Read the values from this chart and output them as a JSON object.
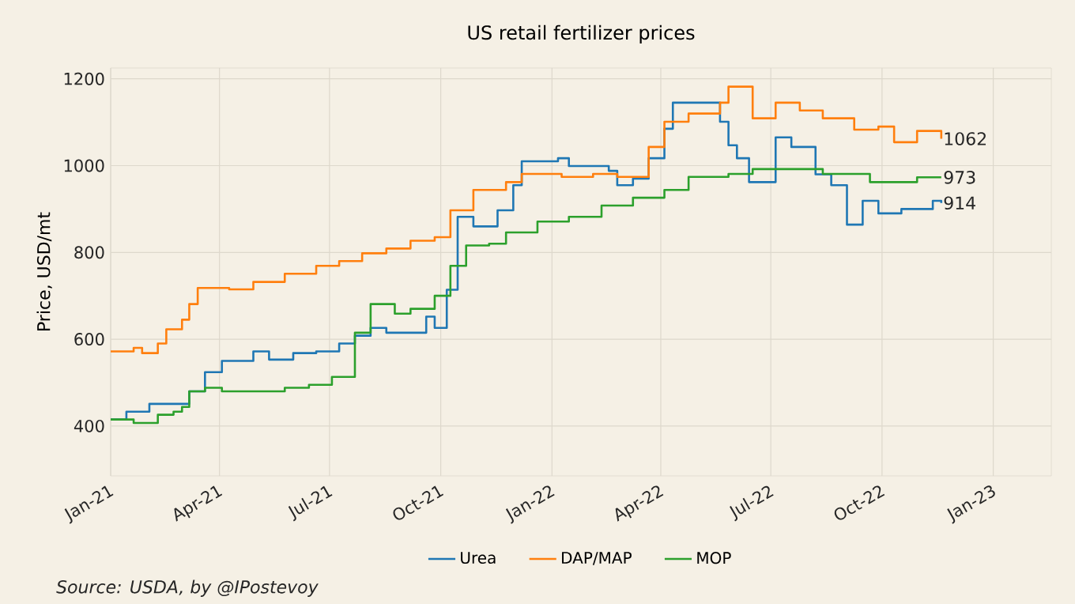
{
  "chart_data": {
    "type": "step",
    "title": "US retail fertilizer prices",
    "ylabel": "Price, USD/mt",
    "xlim": [
      "2021-01-01",
      "2023-02-18"
    ],
    "ylim": [
      285,
      1225
    ],
    "xticks": [
      {
        "value": "2021-01-01",
        "label": "Jan-21"
      },
      {
        "value": "2021-04-01",
        "label": "Apr-21"
      },
      {
        "value": "2021-07-01",
        "label": "Jul-21"
      },
      {
        "value": "2021-10-01",
        "label": "Oct-21"
      },
      {
        "value": "2022-01-01",
        "label": "Jan-22"
      },
      {
        "value": "2022-04-01",
        "label": "Apr-22"
      },
      {
        "value": "2022-07-01",
        "label": "Jul-22"
      },
      {
        "value": "2022-10-01",
        "label": "Oct-22"
      },
      {
        "value": "2023-01-01",
        "label": "Jan-23"
      }
    ],
    "yticks": [
      400,
      600,
      800,
      1000,
      1200
    ],
    "grid": true,
    "legend": "bottom",
    "series": [
      {
        "name": "Urea",
        "color": "#1f77b4",
        "x": [
          "2021-01-01",
          "2021-01-14",
          "2021-02-02",
          "2021-02-22",
          "2021-03-07",
          "2021-03-20",
          "2021-04-03",
          "2021-04-16",
          "2021-04-29",
          "2021-05-12",
          "2021-06-01",
          "2021-06-20",
          "2021-07-09",
          "2021-07-22",
          "2021-08-04",
          "2021-08-17",
          "2021-09-06",
          "2021-09-19",
          "2021-09-26",
          "2021-10-06",
          "2021-10-15",
          "2021-10-28",
          "2021-11-17",
          "2021-11-30",
          "2021-12-07",
          "2021-12-27",
          "2022-01-06",
          "2022-01-15",
          "2022-02-17",
          "2022-02-24",
          "2022-03-09",
          "2022-03-22",
          "2022-04-04",
          "2022-04-11",
          "2022-05-20",
          "2022-05-27",
          "2022-06-03",
          "2022-06-13",
          "2022-06-16",
          "2022-07-05",
          "2022-07-18",
          "2022-08-07",
          "2022-08-20",
          "2022-09-02",
          "2022-09-15",
          "2022-09-28",
          "2022-10-17",
          "2022-11-12",
          "2022-11-19"
        ],
        "values": [
          415,
          433,
          451,
          451,
          480,
          524,
          550,
          550,
          572,
          553,
          568,
          572,
          590,
          608,
          626,
          615,
          615,
          652,
          626,
          714,
          882,
          860,
          897,
          955,
          1010,
          1010,
          1017,
          999,
          988,
          955,
          970,
          1017,
          1085,
          1145,
          1101,
          1047,
          1017,
          962,
          962,
          1065,
          1043,
          980,
          955,
          864,
          919,
          890,
          900,
          919,
          914
        ]
      },
      {
        "name": "DAP/MAP",
        "color": "#ff7f0e",
        "x": [
          "2021-01-01",
          "2021-01-20",
          "2021-01-27",
          "2021-02-09",
          "2021-02-16",
          "2021-03-01",
          "2021-03-07",
          "2021-03-14",
          "2021-04-03",
          "2021-04-09",
          "2021-04-29",
          "2021-05-25",
          "2021-06-20",
          "2021-07-09",
          "2021-07-28",
          "2021-08-17",
          "2021-09-06",
          "2021-09-26",
          "2021-10-09",
          "2021-10-28",
          "2021-11-24",
          "2021-12-07",
          "2022-01-09",
          "2022-02-04",
          "2022-02-24",
          "2022-03-22",
          "2022-04-04",
          "2022-04-24",
          "2022-05-20",
          "2022-05-27",
          "2022-06-16",
          "2022-07-05",
          "2022-07-25",
          "2022-08-13",
          "2022-09-08",
          "2022-09-28",
          "2022-10-11",
          "2022-10-30",
          "2022-11-19"
        ],
        "values": [
          572,
          580,
          568,
          590,
          623,
          645,
          681,
          718,
          718,
          715,
          732,
          751,
          769,
          780,
          798,
          809,
          827,
          835,
          897,
          944,
          962,
          981,
          974,
          981,
          974,
          1043,
          1101,
          1120,
          1145,
          1182,
          1109,
          1145,
          1127,
          1109,
          1083,
          1090,
          1054,
          1080,
          1062
        ]
      },
      {
        "name": "MOP",
        "color": "#2ca02c",
        "x": [
          "2021-01-01",
          "2021-01-20",
          "2021-02-09",
          "2021-02-22",
          "2021-03-01",
          "2021-03-07",
          "2021-03-20",
          "2021-04-03",
          "2021-04-29",
          "2021-05-25",
          "2021-06-14",
          "2021-07-03",
          "2021-07-22",
          "2021-08-04",
          "2021-08-24",
          "2021-09-06",
          "2021-09-26",
          "2021-10-09",
          "2021-10-22",
          "2021-11-10",
          "2021-11-24",
          "2021-12-20",
          "2022-01-15",
          "2022-02-11",
          "2022-03-09",
          "2022-04-04",
          "2022-04-24",
          "2022-05-27",
          "2022-06-16",
          "2022-08-13",
          "2022-09-21",
          "2022-10-30",
          "2022-11-19"
        ],
        "values": [
          415,
          407,
          426,
          433,
          444,
          480,
          488,
          480,
          480,
          488,
          495,
          513,
          615,
          681,
          659,
          670,
          700,
          769,
          816,
          820,
          846,
          871,
          882,
          908,
          926,
          944,
          974,
          981,
          992,
          981,
          962,
          973,
          973
        ]
      }
    ],
    "annotations": [
      {
        "text": "1062",
        "x": "2022-11-19",
        "y": 1062
      },
      {
        "text": "973",
        "x": "2022-11-19",
        "y": 973
      },
      {
        "text": "914",
        "x": "2022-11-19",
        "y": 914
      },
      "Source: USDA, by @IPostevoy"
    ]
  }
}
